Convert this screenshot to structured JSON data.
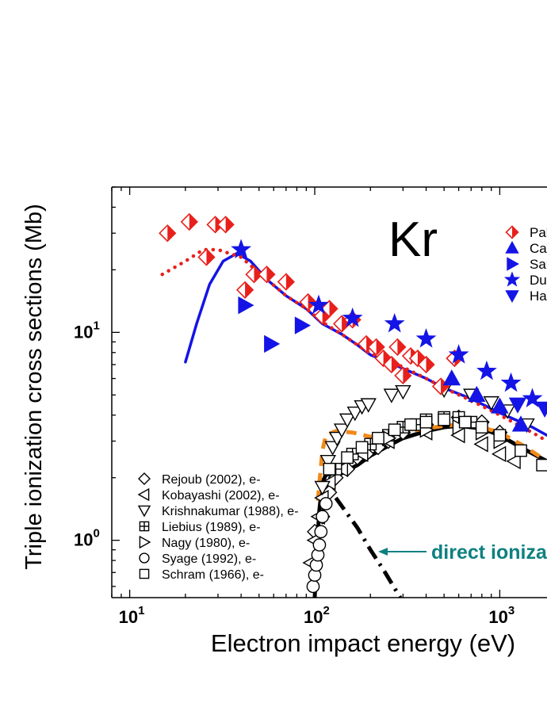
{
  "chart_data": {
    "type": "scatter",
    "title": "Kr",
    "xlabel": "Electron impact energy (eV)",
    "ylabel": "Triple ionization cross sections (Mb)",
    "xscale": "log",
    "yscale": "log",
    "xlim": [
      8,
      1800
    ],
    "ylim": [
      0.53,
      50
    ],
    "x_ticks": [
      {
        "exp": "1",
        "value": 10
      },
      {
        "exp": "2",
        "value": 100
      },
      {
        "exp": "3",
        "value": 1000
      }
    ],
    "y_ticks": [
      {
        "exp": "0",
        "value": 1
      },
      {
        "exp": "1",
        "value": 10
      }
    ],
    "tick_base": "10",
    "ion_series": [
      {
        "name": "Pal",
        "marker": "diamond-half",
        "color": "#e8201c",
        "points": [
          [
            16,
            30
          ],
          [
            21,
            34
          ],
          [
            26,
            23
          ],
          [
            29,
            33
          ],
          [
            33,
            33
          ],
          [
            42,
            16
          ],
          [
            47,
            19
          ],
          [
            55,
            19
          ],
          [
            70,
            17.5
          ],
          [
            92,
            14
          ],
          [
            110,
            12
          ],
          [
            120,
            13
          ],
          [
            140,
            11
          ],
          [
            160,
            11.5
          ],
          [
            190,
            8.8
          ],
          [
            215,
            8.5
          ],
          [
            235,
            7.5
          ],
          [
            260,
            7
          ],
          [
            280,
            8.5
          ],
          [
            300,
            6.2
          ],
          [
            330,
            7.7
          ],
          [
            360,
            7.5
          ],
          [
            400,
            7
          ],
          [
            480,
            5.5
          ],
          [
            570,
            7.5
          ]
        ]
      },
      {
        "name": "Cat",
        "marker": "triangle-up",
        "color": "#1414e6",
        "points": [
          [
            550,
            6
          ],
          [
            750,
            5
          ],
          [
            1000,
            4.4
          ],
          [
            1300,
            3.6
          ]
        ]
      },
      {
        "name": "Sar",
        "marker": "triangle-right",
        "color": "#1414e6",
        "points": [
          [
            42,
            13.5
          ],
          [
            58,
            8.8
          ],
          [
            85,
            10.8
          ]
        ]
      },
      {
        "name": "Du",
        "marker": "star",
        "color": "#1414e6",
        "points": [
          [
            40,
            25
          ],
          [
            105,
            13.5
          ],
          [
            160,
            11.7
          ],
          [
            270,
            11
          ],
          [
            400,
            9.3
          ],
          [
            600,
            7.8
          ],
          [
            850,
            6.5
          ],
          [
            1150,
            5.7
          ],
          [
            1500,
            4.8
          ]
        ]
      },
      {
        "name": "Ha",
        "marker": "triangle-down",
        "color": "#1414e6",
        "points": [
          [
            1250,
            4.5
          ],
          [
            1750,
            4.3
          ]
        ]
      }
    ],
    "ion_curves": [
      {
        "style": "solid",
        "color": "#1414e6",
        "points": [
          [
            20,
            7.2
          ],
          [
            23,
            11
          ],
          [
            27,
            17
          ],
          [
            32,
            22
          ],
          [
            38,
            24
          ],
          [
            45,
            22
          ],
          [
            55,
            18
          ],
          [
            70,
            15
          ],
          [
            90,
            13
          ],
          [
            110,
            11
          ],
          [
            140,
            9.8
          ],
          [
            170,
            8.7
          ],
          [
            200,
            7.8
          ],
          [
            250,
            7.2
          ],
          [
            300,
            6.7
          ],
          [
            400,
            6
          ],
          [
            500,
            5.4
          ],
          [
            700,
            4.8
          ],
          [
            1000,
            4.1
          ],
          [
            1500,
            3.5
          ],
          [
            1800,
            3.2
          ]
        ]
      },
      {
        "style": "dotted",
        "color": "#e8201c",
        "points": [
          [
            15,
            19
          ],
          [
            20,
            22
          ],
          [
            25,
            25
          ],
          [
            30,
            25
          ],
          [
            40,
            23
          ],
          [
            55,
            18
          ],
          [
            70,
            15
          ],
          [
            90,
            13
          ],
          [
            110,
            11.2
          ],
          [
            140,
            9.8
          ],
          [
            170,
            8.7
          ],
          [
            200,
            7.9
          ],
          [
            250,
            7.4
          ],
          [
            300,
            6.8
          ],
          [
            400,
            6
          ],
          [
            500,
            5.4
          ],
          [
            700,
            4.7
          ],
          [
            1000,
            4
          ],
          [
            1500,
            3.3
          ],
          [
            1800,
            3
          ]
        ]
      }
    ],
    "electron_series": [
      {
        "name": "Rejoub (2002), e-",
        "marker": "diamond",
        "points": [
          [
            100,
            1.1
          ],
          [
            110,
            1.3
          ],
          [
            120,
            1.7
          ],
          [
            130,
            2.0
          ],
          [
            150,
            2.2
          ],
          [
            170,
            2.5
          ],
          [
            190,
            2.6
          ],
          [
            220,
            2.8
          ],
          [
            250,
            3.0
          ],
          [
            300,
            3.3
          ],
          [
            400,
            3.6
          ],
          [
            600,
            3.9
          ],
          [
            800,
            3.7
          ],
          [
            1000,
            3.3
          ]
        ]
      },
      {
        "name": "Kobayashi (2002), e-",
        "marker": "triangle-left",
        "points": [
          [
            95,
            0.78
          ],
          [
            100,
            1.0
          ],
          [
            105,
            1.3
          ],
          [
            110,
            1.6
          ],
          [
            120,
            1.9
          ],
          [
            140,
            2.2
          ],
          [
            180,
            2.6
          ],
          [
            250,
            3.0
          ],
          [
            400,
            3.3
          ],
          [
            600,
            3.2
          ],
          [
            800,
            2.9
          ],
          [
            1000,
            2.6
          ],
          [
            1200,
            2.4
          ]
        ]
      },
      {
        "name": "Krishnakumar (1988), e-",
        "marker": "triangle-down",
        "points": [
          [
            110,
            1.8
          ],
          [
            118,
            2.4
          ],
          [
            125,
            2.8
          ],
          [
            132,
            3.1
          ],
          [
            140,
            3.4
          ],
          [
            150,
            3.8
          ],
          [
            165,
            4.1
          ],
          [
            180,
            4.4
          ],
          [
            195,
            4.5
          ],
          [
            260,
            5.0
          ],
          [
            300,
            5.2
          ],
          [
            500,
            5.3
          ],
          [
            700,
            5.0
          ],
          [
            900,
            4.6
          ],
          [
            1100,
            4.2
          ],
          [
            1400,
            3.6
          ]
        ]
      },
      {
        "name": "Liebius (1989), e-",
        "marker": "boxplus",
        "points": [
          [
            130,
            2.2
          ],
          [
            160,
            2.6
          ],
          [
            200,
            2.9
          ],
          [
            250,
            3.2
          ],
          [
            300,
            3.5
          ],
          [
            350,
            3.6
          ],
          [
            400,
            3.8
          ],
          [
            500,
            3.9
          ],
          [
            600,
            3.9
          ],
          [
            700,
            3.7
          ]
        ]
      },
      {
        "name": "Nagy (1980), e-",
        "marker": "triangle-right",
        "points": [
          [
            250,
            3.1
          ],
          [
            400,
            3.4
          ],
          [
            600,
            3.5
          ],
          [
            800,
            3.3
          ],
          [
            1000,
            3.0
          ]
        ]
      },
      {
        "name": "Syage (1992), e-",
        "marker": "circle",
        "points": [
          [
            98,
            0.6
          ],
          [
            100,
            0.68
          ],
          [
            102,
            0.76
          ],
          [
            104,
            0.85
          ],
          [
            106,
            0.95
          ],
          [
            108,
            1.1
          ],
          [
            110,
            1.3
          ],
          [
            115,
            1.5
          ]
        ]
      },
      {
        "name": "Schram (1966), e-",
        "marker": "square",
        "points": [
          [
            120,
            2.2
          ],
          [
            150,
            2.5
          ],
          [
            180,
            2.8
          ],
          [
            220,
            3.1
          ],
          [
            270,
            3.4
          ],
          [
            330,
            3.6
          ],
          [
            400,
            3.7
          ],
          [
            500,
            3.8
          ],
          [
            650,
            3.7
          ],
          [
            800,
            3.5
          ],
          [
            1000,
            3.2
          ],
          [
            1300,
            2.7
          ],
          [
            1700,
            2.3
          ]
        ]
      }
    ],
    "electron_curves": [
      {
        "style": "solid-thick",
        "color": "#000000",
        "points": [
          [
            100,
            0.53
          ],
          [
            103,
            0.95
          ],
          [
            106,
            1.4
          ],
          [
            110,
            1.9
          ],
          [
            115,
            2.07
          ],
          [
            125,
            2.08
          ],
          [
            140,
            2.1
          ],
          [
            170,
            2.3
          ],
          [
            200,
            2.55
          ],
          [
            250,
            2.85
          ],
          [
            300,
            3.1
          ],
          [
            400,
            3.35
          ],
          [
            500,
            3.5
          ],
          [
            600,
            3.55
          ],
          [
            800,
            3.45
          ],
          [
            1000,
            3.2
          ],
          [
            1300,
            2.8
          ],
          [
            1800,
            2.4
          ]
        ]
      },
      {
        "style": "dashed",
        "color": "#f08a1c",
        "points": [
          [
            104,
            1.55
          ],
          [
            106,
            1.9
          ],
          [
            110,
            2.7
          ],
          [
            115,
            3.2
          ],
          [
            130,
            3.35
          ],
          [
            160,
            3.3
          ],
          [
            200,
            3.15
          ],
          [
            250,
            3.2
          ],
          [
            300,
            3.3
          ],
          [
            400,
            3.45
          ],
          [
            500,
            3.55
          ],
          [
            600,
            3.6
          ],
          [
            800,
            3.5
          ],
          [
            1000,
            3.3
          ],
          [
            1300,
            2.9
          ],
          [
            1800,
            2.4
          ]
        ]
      },
      {
        "style": "dash-dot",
        "color": "#000000",
        "points": [
          [
            130,
            1.6
          ],
          [
            170,
            1.15
          ],
          [
            200,
            0.9
          ],
          [
            240,
            0.7
          ],
          [
            290,
            0.53
          ]
        ]
      }
    ],
    "annotation": {
      "text": "direct ionization",
      "color": "#0f8080"
    },
    "legend_electron": [
      "Rejoub (2002), e-",
      "Kobayashi (2002), e-",
      "Krishnakumar (1988), e-",
      "Liebius (1989), e-",
      "Nagy (1980), e-",
      "Syage (1992), e-",
      "Schram (1966), e-"
    ],
    "legend_ion": [
      "Pal",
      "Cat",
      "Sar",
      "Du",
      "Ha"
    ]
  }
}
